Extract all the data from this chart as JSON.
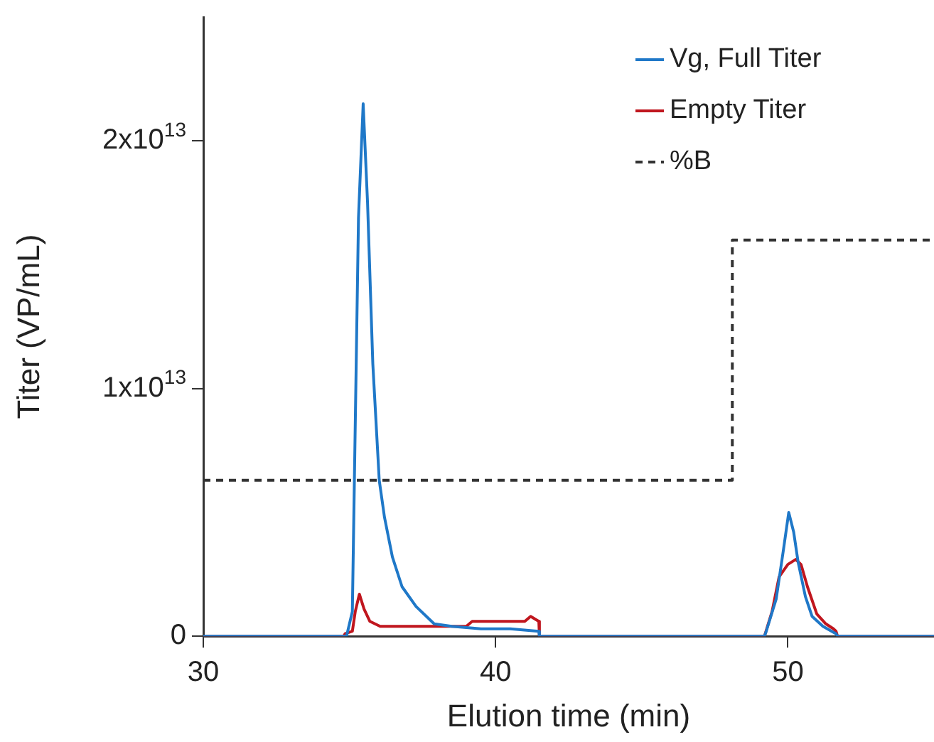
{
  "chart_data": {
    "type": "line",
    "xlabel": "Elution time (min)",
    "ylabel": "Titer (VP/mL)",
    "xlim": [
      30,
      55
    ],
    "xticks": [
      30,
      40,
      50
    ],
    "ylim": [
      0,
      25000000000000.0
    ],
    "yticks": [
      {
        "value": 0,
        "label": "0"
      },
      {
        "value": 10000000000000.0,
        "label": "1x10$^{13}$"
      },
      {
        "value": 20000000000000.0,
        "label": "2x10$^{13}$"
      }
    ],
    "grid": false,
    "legend": "top right",
    "marker": "none",
    "series": [
      {
        "name": "Vg, Full Titer",
        "color": "#1f78c8",
        "line_style": "solid",
        "x": [
          30,
          34.9,
          35.1,
          35.18,
          35.31,
          35.47,
          35.62,
          35.8,
          36.02,
          36.2,
          36.47,
          36.8,
          37.28,
          37.9,
          38.5,
          39.5,
          40.5,
          41.48,
          41.5,
          49.2,
          49.26,
          49.6,
          49.85,
          50.03,
          50.2,
          50.35,
          50.6,
          50.83,
          51.2,
          51.65,
          51.7,
          55
        ],
        "values": [
          0,
          0,
          1000000000000.0,
          7100000000000.0,
          16900000000000.0,
          21500000000000.0,
          17500000000000.0,
          11000000000000.0,
          6300000000000.0,
          4800000000000.0,
          3200000000000.0,
          2000000000000.0,
          1200000000000.0,
          500000000000.0,
          400000000000.0,
          300000000000.0,
          300000000000.0,
          200000000000.0,
          0,
          0,
          200000000000.0,
          1500000000000.0,
          3500000000000.0,
          5000000000000.0,
          4200000000000.0,
          3000000000000.0,
          1600000000000.0,
          800000000000.0,
          400000000000.0,
          100000000000.0,
          0,
          0
        ]
      },
      {
        "name": "Empty Titer",
        "color": "#c0161e",
        "line_style": "solid",
        "x": [
          30,
          34.8,
          34.85,
          35.1,
          35.2,
          35.34,
          35.5,
          35.7,
          36.05,
          37,
          38,
          39,
          39.2,
          40,
          40.5,
          41,
          41.2,
          41.48,
          41.5,
          49.2,
          49.46,
          49.7,
          50,
          50.27,
          50.45,
          50.67,
          50.99,
          51.3,
          51.56,
          51.65,
          51.7,
          55
        ],
        "values": [
          0,
          0,
          100000000000.0,
          200000000000.0,
          1000000000000.0,
          1700000000000.0,
          1100000000000.0,
          600000000000.0,
          400000000000.0,
          400000000000.0,
          400000000000.0,
          400000000000.0,
          600000000000.0,
          600000000000.0,
          600000000000.0,
          600000000000.0,
          800000000000.0,
          600000000000.0,
          0,
          0,
          1000000000000.0,
          2400000000000.0,
          2900000000000.0,
          3100000000000.0,
          2900000000000.0,
          2000000000000.0,
          900000000000.0,
          500000000000.0,
          300000000000.0,
          200000000000.0,
          0,
          0
        ]
      },
      {
        "name": "%B",
        "type": "step",
        "color": "#333333",
        "line_style": "dashed",
        "x": [
          30,
          48.1,
          55
        ],
        "values": [
          6300000000000.0,
          16000000000000.0,
          16000000000000.0
        ]
      }
    ]
  }
}
